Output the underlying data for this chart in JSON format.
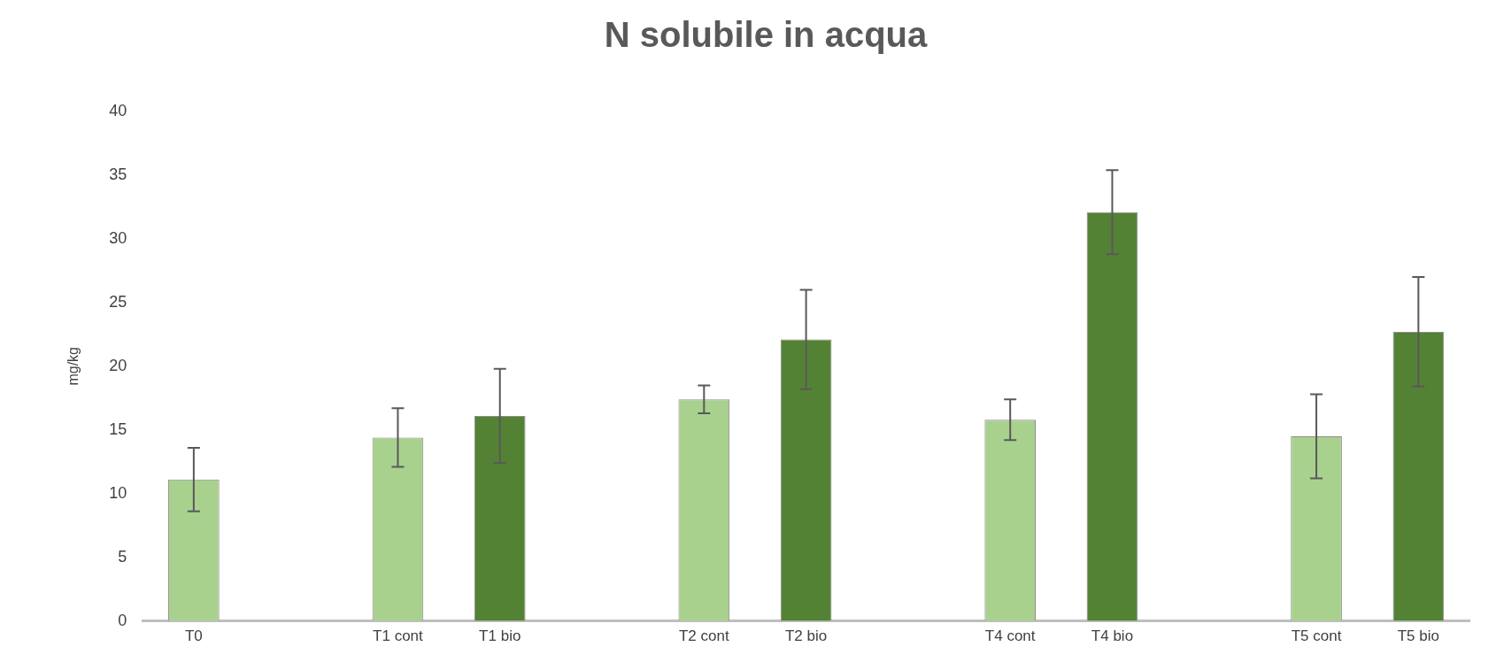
{
  "chart_data": {
    "type": "bar",
    "title": "N solubile in acqua",
    "ylabel": "mg/kg",
    "categories": [
      "T0",
      null,
      "T1 cont",
      "T1 bio",
      null,
      "T2 cont",
      "T2 bio",
      null,
      "T4 cont",
      "T4 bio",
      null,
      "T5 cont",
      "T5 bio"
    ],
    "values": [
      11.1,
      null,
      14.4,
      16.1,
      null,
      17.4,
      22.1,
      null,
      15.8,
      32.1,
      null,
      14.5,
      22.7
    ],
    "errors": [
      2.5,
      null,
      2.3,
      3.7,
      null,
      1.1,
      3.9,
      null,
      1.6,
      3.3,
      null,
      3.3,
      4.3
    ],
    "colors": [
      "#a9d18e",
      null,
      "#a9d18e",
      "#548235",
      null,
      "#a9d18e",
      "#548235",
      null,
      "#a9d18e",
      "#548235",
      null,
      "#a9d18e",
      "#548235"
    ],
    "ylim": [
      0,
      40
    ],
    "yticks": [
      0,
      5,
      10,
      15,
      20,
      25,
      30,
      35,
      40
    ],
    "grid": false,
    "legend": false
  }
}
